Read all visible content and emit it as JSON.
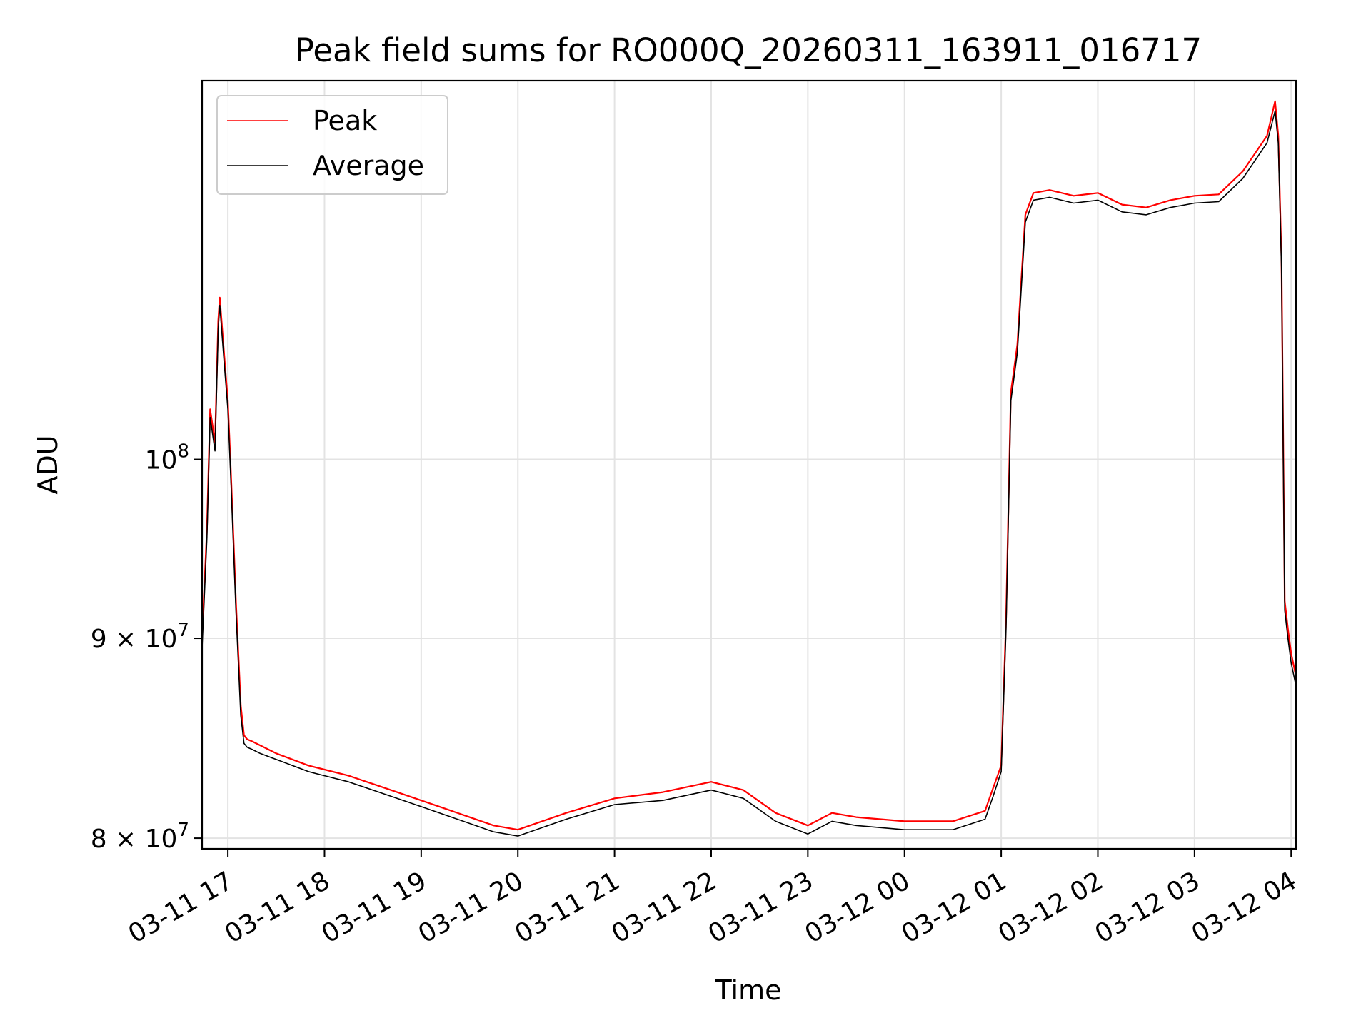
{
  "chart_data": {
    "type": "line",
    "title": "Peak field sums for RO000Q_20260311_163911_016717",
    "xlabel": "Time",
    "ylabel": "ADU",
    "y_scale": "log",
    "xlim": [
      "2026-03-11 16:44",
      "2026-03-12 04:03"
    ],
    "ylim": [
      79500000,
      125000000
    ],
    "grid": true,
    "legend_placement": "top-left",
    "x_ticks": [
      "03-11 17",
      "03-11 18",
      "03-11 19",
      "03-11 20",
      "03-11 21",
      "03-11 22",
      "03-11 23",
      "03-12 00",
      "03-12 01",
      "03-12 02",
      "03-12 03",
      "03-12 04"
    ],
    "x_tick_values": [
      "2026-03-11 17:00",
      "2026-03-11 18:00",
      "2026-03-11 19:00",
      "2026-03-11 20:00",
      "2026-03-11 21:00",
      "2026-03-11 22:00",
      "2026-03-11 23:00",
      "2026-03-12 00:00",
      "2026-03-12 01:00",
      "2026-03-12 02:00",
      "2026-03-12 03:00",
      "2026-03-12 04:00"
    ],
    "y_ticks": [
      {
        "value": 80000000,
        "label_base": "8 × 10",
        "label_exp": "7"
      },
      {
        "value": 90000000,
        "label_base": "9 × 10",
        "label_exp": "7"
      },
      {
        "value": 100000000,
        "label_base": "10",
        "label_exp": "8"
      }
    ],
    "series": [
      {
        "name": "Peak",
        "color": "#ff0000",
        "x": [
          "2026-03-11 16:44",
          "2026-03-11 16:47",
          "2026-03-11 16:49",
          "2026-03-11 16:52",
          "2026-03-11 16:54",
          "2026-03-11 16:55",
          "2026-03-11 16:58",
          "2026-03-11 17:00",
          "2026-03-11 17:02",
          "2026-03-11 17:05",
          "2026-03-11 17:08",
          "2026-03-11 17:10",
          "2026-03-11 17:12",
          "2026-03-11 17:15",
          "2026-03-11 17:20",
          "2026-03-11 17:30",
          "2026-03-11 17:40",
          "2026-03-11 17:50",
          "2026-03-11 18:00",
          "2026-03-11 18:15",
          "2026-03-11 18:30",
          "2026-03-11 18:45",
          "2026-03-11 19:00",
          "2026-03-11 19:15",
          "2026-03-11 19:30",
          "2026-03-11 19:45",
          "2026-03-11 20:00",
          "2026-03-11 20:30",
          "2026-03-11 21:00",
          "2026-03-11 21:30",
          "2026-03-11 22:00",
          "2026-03-11 22:20",
          "2026-03-11 22:40",
          "2026-03-11 23:00",
          "2026-03-11 23:15",
          "2026-03-11 23:30",
          "2026-03-12 00:00",
          "2026-03-12 00:30",
          "2026-03-12 00:50",
          "2026-03-12 00:55",
          "2026-03-12 01:00",
          "2026-03-12 01:03",
          "2026-03-12 01:06",
          "2026-03-12 01:10",
          "2026-03-12 01:15",
          "2026-03-12 01:20",
          "2026-03-12 01:30",
          "2026-03-12 01:45",
          "2026-03-12 02:00",
          "2026-03-12 02:15",
          "2026-03-12 02:30",
          "2026-03-12 02:45",
          "2026-03-12 03:00",
          "2026-03-12 03:15",
          "2026-03-12 03:30",
          "2026-03-12 03:45",
          "2026-03-12 03:50",
          "2026-03-12 03:52",
          "2026-03-12 03:54",
          "2026-03-12 03:56",
          "2026-03-12 03:58",
          "2026-03-12 04:00",
          "2026-03-12 04:03"
        ],
        "y": [
          90000000,
          96000000,
          103000000,
          101000000,
          108500000,
          110000000,
          106000000,
          103500000,
          99000000,
          92000000,
          86500000,
          85000000,
          84800000,
          84700000,
          84500000,
          84100000,
          83800000,
          83500000,
          83300000,
          83000000,
          82600000,
          82200000,
          81800000,
          81400000,
          81000000,
          80600000,
          80400000,
          81200000,
          81900000,
          82200000,
          82700000,
          82300000,
          81200000,
          80600000,
          81200000,
          81000000,
          80800000,
          80800000,
          81300000,
          82400000,
          83500000,
          91000000,
          104000000,
          107000000,
          115500000,
          117000000,
          117200000,
          116800000,
          117000000,
          116200000,
          116000000,
          116500000,
          116800000,
          116900000,
          118500000,
          121000000,
          123500000,
          121000000,
          112500000,
          92000000,
          90500000,
          89200000,
          88000000
        ]
      },
      {
        "name": "Average",
        "color": "#000000",
        "x": [
          "2026-03-11 16:44",
          "2026-03-11 16:47",
          "2026-03-11 16:49",
          "2026-03-11 16:52",
          "2026-03-11 16:54",
          "2026-03-11 16:55",
          "2026-03-11 16:58",
          "2026-03-11 17:00",
          "2026-03-11 17:02",
          "2026-03-11 17:05",
          "2026-03-11 17:08",
          "2026-03-11 17:10",
          "2026-03-11 17:12",
          "2026-03-11 17:15",
          "2026-03-11 17:20",
          "2026-03-11 17:30",
          "2026-03-11 17:40",
          "2026-03-11 17:50",
          "2026-03-11 18:00",
          "2026-03-11 18:15",
          "2026-03-11 18:30",
          "2026-03-11 18:45",
          "2026-03-11 19:00",
          "2026-03-11 19:15",
          "2026-03-11 19:30",
          "2026-03-11 19:45",
          "2026-03-11 20:00",
          "2026-03-11 20:30",
          "2026-03-11 21:00",
          "2026-03-11 21:30",
          "2026-03-11 22:00",
          "2026-03-11 22:20",
          "2026-03-11 22:40",
          "2026-03-11 23:00",
          "2026-03-11 23:15",
          "2026-03-11 23:30",
          "2026-03-12 00:00",
          "2026-03-12 00:30",
          "2026-03-12 00:50",
          "2026-03-12 00:55",
          "2026-03-12 01:00",
          "2026-03-12 01:03",
          "2026-03-12 01:06",
          "2026-03-12 01:10",
          "2026-03-12 01:15",
          "2026-03-12 01:20",
          "2026-03-12 01:30",
          "2026-03-12 01:45",
          "2026-03-12 02:00",
          "2026-03-12 02:15",
          "2026-03-12 02:30",
          "2026-03-12 02:45",
          "2026-03-12 03:00",
          "2026-03-12 03:15",
          "2026-03-12 03:30",
          "2026-03-12 03:45",
          "2026-03-12 03:50",
          "2026-03-12 03:52",
          "2026-03-12 03:54",
          "2026-03-12 03:56",
          "2026-03-12 03:58",
          "2026-03-12 04:00",
          "2026-03-12 04:03"
        ],
        "y": [
          89500000,
          95500000,
          102500000,
          100500000,
          108000000,
          109500000,
          105500000,
          103000000,
          98500000,
          91500000,
          86000000,
          84600000,
          84400000,
          84300000,
          84100000,
          83800000,
          83500000,
          83200000,
          83000000,
          82700000,
          82300000,
          81900000,
          81500000,
          81100000,
          80700000,
          80300000,
          80100000,
          80900000,
          81600000,
          81800000,
          82300000,
          81900000,
          80800000,
          80200000,
          80800000,
          80600000,
          80400000,
          80400000,
          80900000,
          82000000,
          83200000,
          90500000,
          103500000,
          106500000,
          115000000,
          116500000,
          116700000,
          116300000,
          116500000,
          115700000,
          115500000,
          116000000,
          116300000,
          116400000,
          118000000,
          120500000,
          122800000,
          120500000,
          112000000,
          91500000,
          90000000,
          88700000,
          87500000
        ]
      }
    ]
  }
}
